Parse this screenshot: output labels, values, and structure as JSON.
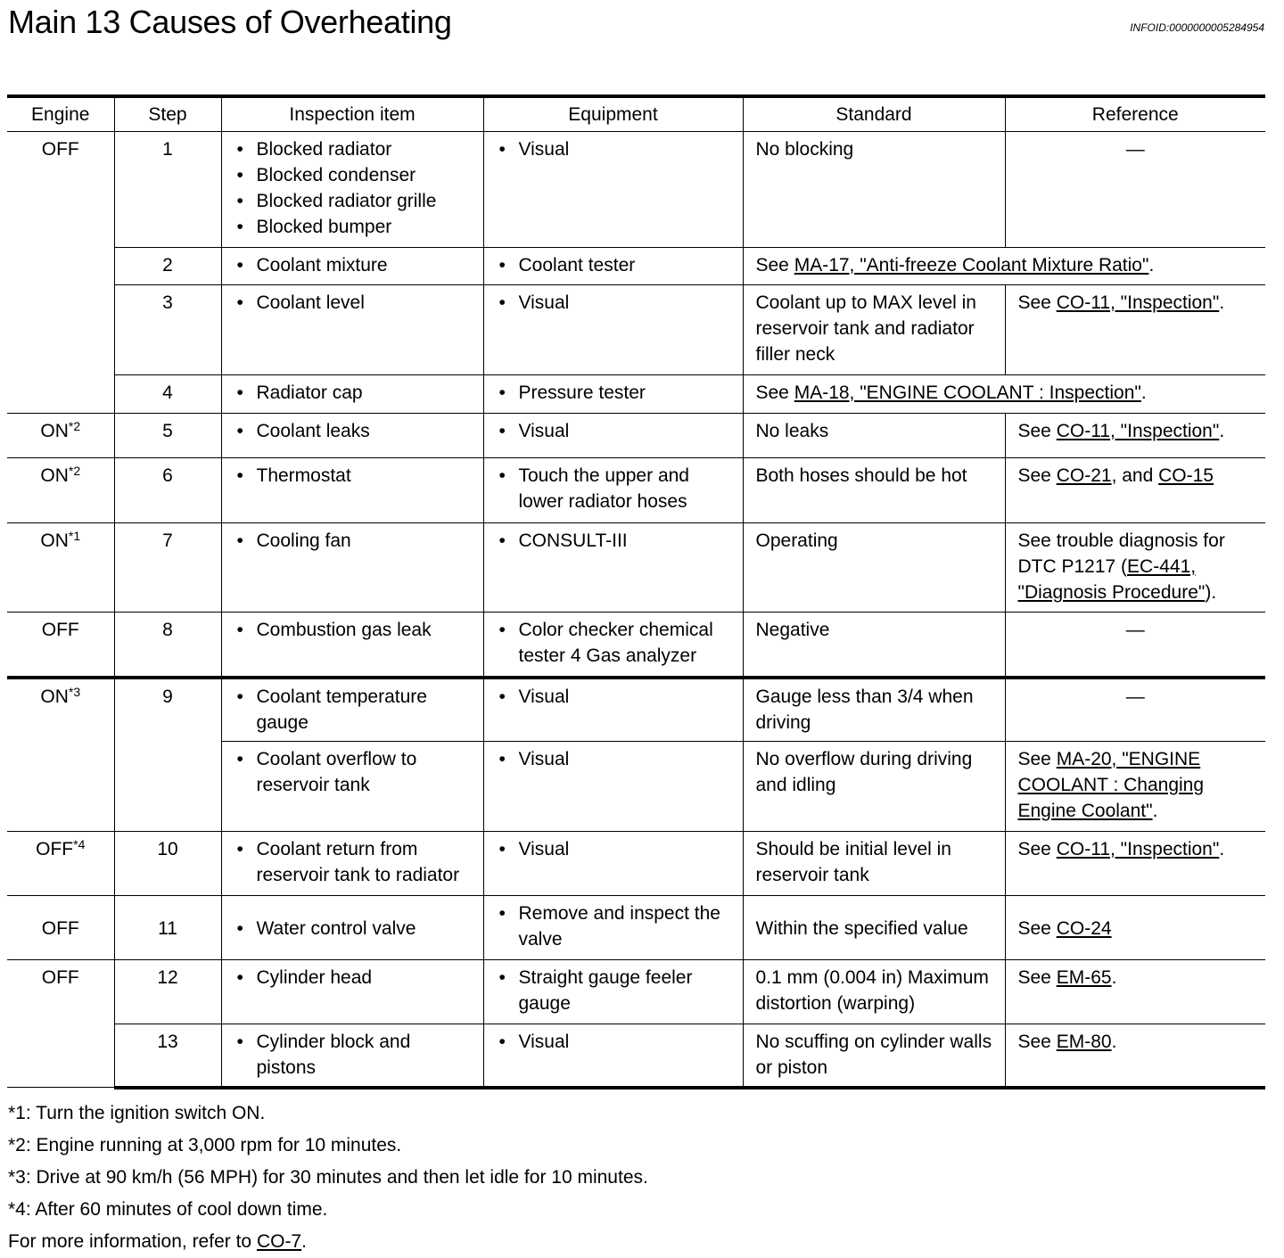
{
  "title": "Main 13 Causes of Overheating",
  "infoid": "INFOID:0000000005284954",
  "headers": [
    "Engine",
    "Step",
    "Inspection item",
    "Equipment",
    "Standard",
    "Reference"
  ],
  "rows": [
    {
      "engine": "OFF",
      "engine_sup": "",
      "engine_rowspan": 4,
      "step": "1",
      "items": [
        "Blocked radiator",
        "Blocked condenser",
        "Blocked radiator grille",
        "Blocked bumper"
      ],
      "equipment": [
        "Visual"
      ],
      "standard": "No blocking",
      "reference": [
        {
          "t": "—",
          "center": true
        }
      ],
      "h": 130
    },
    {
      "step": "2",
      "items": [
        "Coolant mixture"
      ],
      "equipment": [
        "Coolant tester"
      ],
      "merged": true,
      "reference": [
        {
          "t": "See "
        },
        {
          "t": "MA-17, \"Anti-freeze Coolant Mixture Ratio\"",
          "link": true
        },
        {
          "t": "."
        }
      ],
      "h": 42
    },
    {
      "step": "3",
      "items": [
        "Coolant level"
      ],
      "equipment": [
        "Visual"
      ],
      "standard": "Coolant up to MAX level in reservoir tank and radiator filler neck",
      "reference": [
        {
          "t": "See "
        },
        {
          "t": "CO-11, \"Inspection\"",
          "link": true
        },
        {
          "t": "."
        }
      ],
      "h": 101
    },
    {
      "step": "4",
      "items": [
        "Radiator cap"
      ],
      "equipment": [
        "Pressure tester"
      ],
      "merged": true,
      "reference": [
        {
          "t": "See "
        },
        {
          "t": "MA-18, \"ENGINE COOLANT : Inspection\"",
          "link": true
        },
        {
          "t": "."
        }
      ],
      "h": 43
    },
    {
      "engine": "ON",
      "engine_sup": "*2",
      "engine_rowspan": 1,
      "step": "5",
      "items": [
        "Coolant leaks"
      ],
      "equipment": [
        "Visual"
      ],
      "standard": "No leaks",
      "reference": [
        {
          "t": "See "
        },
        {
          "t": "CO-11, \"Inspection\"",
          "link": true
        },
        {
          "t": "."
        }
      ],
      "h": 50
    },
    {
      "engine": "ON",
      "engine_sup": "*2",
      "engine_rowspan": 1,
      "step": "6",
      "items": [
        "Thermostat"
      ],
      "equipment": [
        "Touch the upper and lower radiator hoses"
      ],
      "standard": "Both hoses should be hot",
      "reference": [
        {
          "t": "See "
        },
        {
          "t": "CO-21",
          "link": true
        },
        {
          "t": ", and "
        },
        {
          "t": "CO-15",
          "link": true
        }
      ],
      "h": 73
    },
    {
      "engine": "ON",
      "engine_sup": "*1",
      "engine_rowspan": 1,
      "step": "7",
      "items": [
        "Cooling fan"
      ],
      "equipment": [
        "CONSULT-III"
      ],
      "standard": "Operating",
      "reference": [
        {
          "t": "See trouble diagnosis for DTC P1217 ("
        },
        {
          "t": "EC-441, \"Diagnosis Procedure\"",
          "link": true
        },
        {
          "t": ")."
        }
      ],
      "h": 100
    },
    {
      "engine": "OFF",
      "engine_sup": "",
      "engine_rowspan": 1,
      "step": "8",
      "items": [
        "Combustion gas leak"
      ],
      "equipment": [
        "Color checker chemical tester 4 Gas analyzer"
      ],
      "standard": "Negative",
      "reference": [
        {
          "t": "—",
          "center": true
        }
      ],
      "h": 73
    },
    {
      "engine": "ON",
      "engine_sup": "*3",
      "engine_rowspan": 2,
      "step": "9",
      "step_rowspan": 2,
      "thick": true,
      "items": [
        "Coolant temperature gauge"
      ],
      "equipment": [
        "Visual"
      ],
      "standard": "Gauge less than 3/4 when driving",
      "reference": [
        {
          "t": "—",
          "center": true
        }
      ],
      "h": 72
    },
    {
      "items": [
        "Coolant overflow to reservoir tank"
      ],
      "equipment": [
        "Visual"
      ],
      "standard": "No overflow during driving and idling",
      "reference": [
        {
          "t": "See "
        },
        {
          "t": "MA-20, \"ENGINE COOLANT : Changing Engine Coolant\"",
          "link": true
        },
        {
          "t": "."
        }
      ],
      "h": 101
    },
    {
      "engine": "OFF",
      "engine_sup": "*4",
      "engine_rowspan": 1,
      "step": "10",
      "items": [
        "Coolant return from reservoir tank to radiator"
      ],
      "equipment": [
        "Visual"
      ],
      "standard": "Should be initial level in reservoir tank",
      "reference": [
        {
          "t": "See "
        },
        {
          "t": "CO-11, \"Inspection\"",
          "link": true
        },
        {
          "t": "."
        }
      ],
      "h": 72
    },
    {
      "engine": "OFF",
      "engine_sup": "",
      "engine_rowspan": 1,
      "middle": true,
      "step": "11",
      "items": [
        "Water control valve"
      ],
      "equipment": [
        "Remove and inspect the valve"
      ],
      "standard": "Within the specified value",
      "reference": [
        {
          "t": "See "
        },
        {
          "t": "CO-24",
          "link": true
        }
      ],
      "h": 72
    },
    {
      "engine": "OFF",
      "engine_sup": "",
      "engine_rowspan": 2,
      "step": "12",
      "items": [
        "Cylinder head"
      ],
      "equipment": [
        "Straight gauge feeler gauge"
      ],
      "standard": "0.1 mm (0.004 in) Maximum distortion (warping)",
      "reference": [
        {
          "t": "See "
        },
        {
          "t": "EM-65",
          "link": true
        },
        {
          "t": "."
        }
      ],
      "h": 72
    },
    {
      "step": "13",
      "items": [
        "Cylinder block and pistons"
      ],
      "equipment": [
        "Visual"
      ],
      "standard": "No scuffing on cylinder walls or piston",
      "reference": [
        {
          "t": "See "
        },
        {
          "t": "EM-80",
          "link": true
        },
        {
          "t": "."
        }
      ],
      "h": 71
    }
  ],
  "notes": [
    [
      {
        "t": "*1: Turn the ignition switch ON."
      }
    ],
    [
      {
        "t": "*2: Engine running at 3,000 rpm for 10 minutes."
      }
    ],
    [
      {
        "t": "*3: Drive at 90 km/h (56 MPH) for 30 minutes and then let idle for 10 minutes."
      }
    ],
    [
      {
        "t": "*4: After 60 minutes of cool down time."
      }
    ],
    [
      {
        "t": "For more information, refer to "
      },
      {
        "t": "CO-7",
        "link": true
      },
      {
        "t": "."
      }
    ]
  ]
}
